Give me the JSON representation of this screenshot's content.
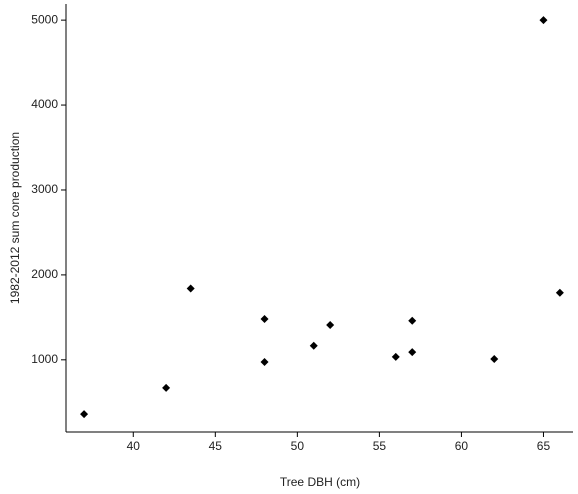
{
  "chart_data": {
    "type": "scatter",
    "x_label": "Tree DBH (cm)",
    "y_label": "1982-2012 sum cone production",
    "x": [
      37,
      42,
      43.5,
      48,
      48,
      51,
      52,
      56,
      57,
      57,
      62,
      65,
      66
    ],
    "values": [
      360,
      670,
      1840,
      1480,
      975,
      1165,
      1410,
      1035,
      1460,
      1090,
      1010,
      5000,
      1790
    ],
    "color": "#000000",
    "xlim": [
      35.9,
      66.8
    ],
    "xticks": [
      40,
      45,
      50,
      55,
      60,
      65
    ],
    "ylim": [
      150,
      5190
    ],
    "yticks": [
      1000,
      2000,
      3000,
      4000,
      5000
    ]
  }
}
